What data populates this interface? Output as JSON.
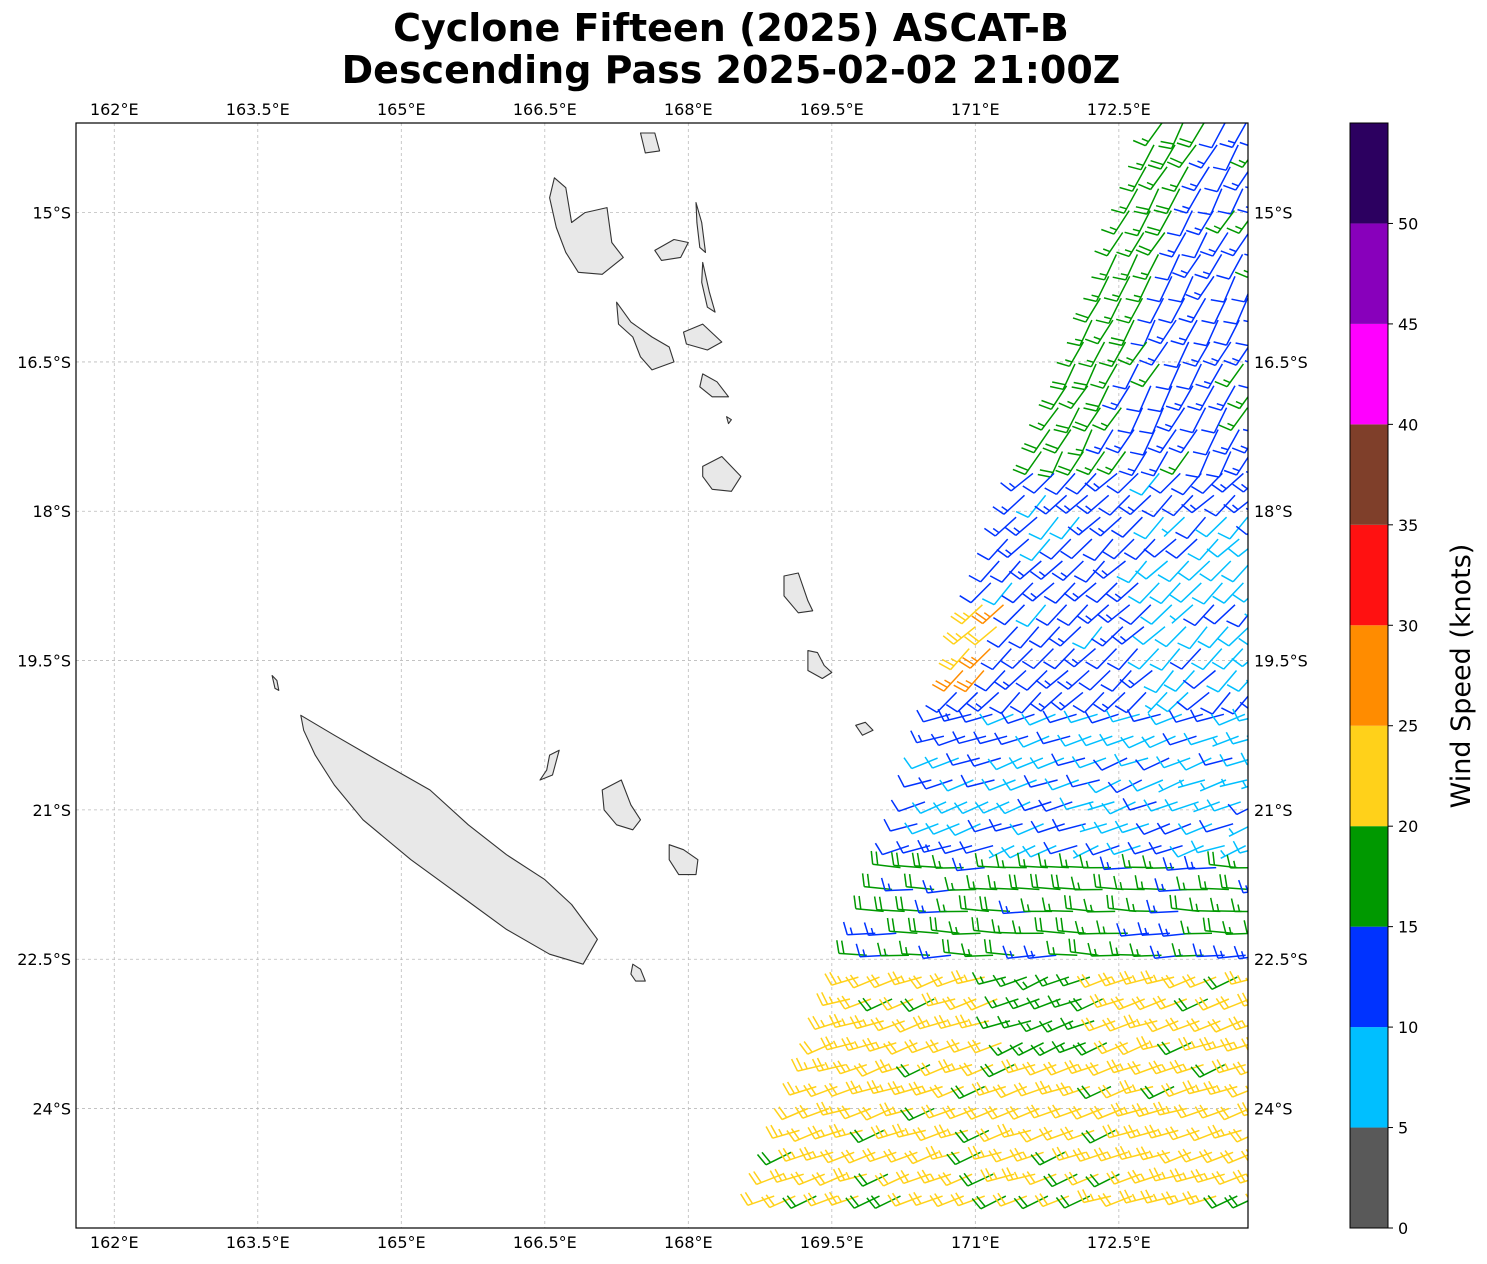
{
  "title_line1": "Cyclone Fifteen (2025) ASCAT-B",
  "title_line2": "Descending Pass 2025-02-02 21:00Z",
  "map": {
    "extent": {
      "lon_min": 161.6,
      "lon_max": 173.85,
      "lat_min": -25.2,
      "lat_max": -14.1
    },
    "lon_ticks": [
      {
        "value": 162,
        "label": "162°E"
      },
      {
        "value": 163.5,
        "label": "163.5°E"
      },
      {
        "value": 165,
        "label": "165°E"
      },
      {
        "value": 166.5,
        "label": "166.5°E"
      },
      {
        "value": 168,
        "label": "168°E"
      },
      {
        "value": 169.5,
        "label": "169.5°E"
      },
      {
        "value": 171,
        "label": "171°E"
      },
      {
        "value": 172.5,
        "label": "172.5°E"
      }
    ],
    "lat_ticks": [
      {
        "value": -15,
        "label": "15°S"
      },
      {
        "value": -16.5,
        "label": "16.5°S"
      },
      {
        "value": -18,
        "label": "18°S"
      },
      {
        "value": -19.5,
        "label": "19.5°S"
      },
      {
        "value": -21,
        "label": "21°S"
      },
      {
        "value": -22.5,
        "label": "22.5°S"
      },
      {
        "value": -24,
        "label": "24°S"
      }
    ],
    "grid": true,
    "land_color": "#e8e8e8",
    "coast_color": "#333333",
    "islands": [
      {
        "name": "Grande Terre",
        "pts": [
          [
            163.95,
            -20.05
          ],
          [
            164.3,
            -20.25
          ],
          [
            164.75,
            -20.5
          ],
          [
            165.3,
            -20.8
          ],
          [
            165.7,
            -21.15
          ],
          [
            166.1,
            -21.45
          ],
          [
            166.5,
            -21.7
          ],
          [
            166.78,
            -21.95
          ],
          [
            167.05,
            -22.3
          ],
          [
            166.9,
            -22.55
          ],
          [
            166.55,
            -22.45
          ],
          [
            166.1,
            -22.2
          ],
          [
            165.6,
            -21.85
          ],
          [
            165.1,
            -21.5
          ],
          [
            164.6,
            -21.1
          ],
          [
            164.3,
            -20.75
          ],
          [
            164.1,
            -20.45
          ],
          [
            163.98,
            -20.2
          ]
        ]
      },
      {
        "name": "Espiritu Santo",
        "pts": [
          [
            166.6,
            -14.65
          ],
          [
            166.72,
            -14.75
          ],
          [
            166.78,
            -15.1
          ],
          [
            166.92,
            -15.0
          ],
          [
            167.15,
            -14.95
          ],
          [
            167.2,
            -15.3
          ],
          [
            167.32,
            -15.45
          ],
          [
            167.1,
            -15.62
          ],
          [
            166.85,
            -15.6
          ],
          [
            166.72,
            -15.4
          ],
          [
            166.62,
            -15.15
          ],
          [
            166.55,
            -14.85
          ]
        ]
      },
      {
        "name": "Malekula",
        "pts": [
          [
            167.25,
            -15.9
          ],
          [
            167.4,
            -16.1
          ],
          [
            167.62,
            -16.25
          ],
          [
            167.8,
            -16.35
          ],
          [
            167.85,
            -16.5
          ],
          [
            167.62,
            -16.58
          ],
          [
            167.5,
            -16.45
          ],
          [
            167.42,
            -16.25
          ],
          [
            167.27,
            -16.12
          ]
        ]
      },
      {
        "name": "Maewo",
        "pts": [
          [
            168.08,
            -14.9
          ],
          [
            168.14,
            -15.1
          ],
          [
            168.18,
            -15.4
          ],
          [
            168.12,
            -15.35
          ],
          [
            168.09,
            -15.1
          ]
        ]
      },
      {
        "name": "Pentecost",
        "pts": [
          [
            168.15,
            -15.5
          ],
          [
            168.22,
            -15.8
          ],
          [
            168.28,
            -16.0
          ],
          [
            168.2,
            -15.95
          ],
          [
            168.14,
            -15.7
          ]
        ]
      },
      {
        "name": "Ambae",
        "pts": [
          [
            167.65,
            -15.38
          ],
          [
            167.85,
            -15.27
          ],
          [
            168.0,
            -15.3
          ],
          [
            167.92,
            -15.45
          ],
          [
            167.72,
            -15.48
          ]
        ]
      },
      {
        "name": "Ambrym",
        "pts": [
          [
            167.95,
            -16.2
          ],
          [
            168.15,
            -16.12
          ],
          [
            168.35,
            -16.3
          ],
          [
            168.2,
            -16.38
          ],
          [
            167.98,
            -16.32
          ]
        ]
      },
      {
        "name": "Epi",
        "pts": [
          [
            168.15,
            -16.62
          ],
          [
            168.3,
            -16.7
          ],
          [
            168.42,
            -16.85
          ],
          [
            168.25,
            -16.85
          ],
          [
            168.12,
            -16.75
          ]
        ]
      },
      {
        "name": "Efate",
        "pts": [
          [
            168.15,
            -17.55
          ],
          [
            168.35,
            -17.45
          ],
          [
            168.55,
            -17.65
          ],
          [
            168.45,
            -17.8
          ],
          [
            168.25,
            -17.78
          ],
          [
            168.15,
            -17.65
          ]
        ]
      },
      {
        "name": "Erromango",
        "pts": [
          [
            169.0,
            -18.65
          ],
          [
            169.15,
            -18.62
          ],
          [
            169.25,
            -18.9
          ],
          [
            169.3,
            -19.0
          ],
          [
            169.15,
            -19.02
          ],
          [
            169.0,
            -18.85
          ]
        ]
      },
      {
        "name": "Tanna",
        "pts": [
          [
            169.25,
            -19.4
          ],
          [
            169.35,
            -19.42
          ],
          [
            169.42,
            -19.55
          ],
          [
            169.5,
            -19.62
          ],
          [
            169.4,
            -19.68
          ],
          [
            169.25,
            -19.6
          ]
        ]
      },
      {
        "name": "Aneityum",
        "pts": [
          [
            169.75,
            -20.15
          ],
          [
            169.85,
            -20.12
          ],
          [
            169.93,
            -20.2
          ],
          [
            169.82,
            -20.25
          ]
        ]
      },
      {
        "name": "Lifou",
        "pts": [
          [
            167.1,
            -20.8
          ],
          [
            167.3,
            -20.7
          ],
          [
            167.4,
            -20.95
          ],
          [
            167.5,
            -21.1
          ],
          [
            167.42,
            -21.2
          ],
          [
            167.25,
            -21.15
          ],
          [
            167.12,
            -21.0
          ]
        ]
      },
      {
        "name": "Mare",
        "pts": [
          [
            167.8,
            -21.35
          ],
          [
            167.95,
            -21.4
          ],
          [
            168.1,
            -21.5
          ],
          [
            168.08,
            -21.65
          ],
          [
            167.9,
            -21.65
          ],
          [
            167.8,
            -21.5
          ]
        ]
      },
      {
        "name": "Ouvea",
        "pts": [
          [
            166.55,
            -20.45
          ],
          [
            166.65,
            -20.4
          ],
          [
            166.58,
            -20.65
          ],
          [
            166.45,
            -20.7
          ],
          [
            166.52,
            -20.6
          ]
        ]
      },
      {
        "name": "Isle of Pines",
        "pts": [
          [
            167.42,
            -22.55
          ],
          [
            167.5,
            -22.6
          ],
          [
            167.55,
            -22.72
          ],
          [
            167.45,
            -22.72
          ],
          [
            167.4,
            -22.65
          ]
        ]
      },
      {
        "name": "Torres",
        "pts": [
          [
            167.5,
            -14.2
          ],
          [
            167.65,
            -14.2
          ],
          [
            167.7,
            -14.38
          ],
          [
            167.55,
            -14.4
          ]
        ]
      },
      {
        "name": "Belep",
        "pts": [
          [
            163.65,
            -19.65
          ],
          [
            163.7,
            -19.7
          ],
          [
            163.72,
            -19.8
          ],
          [
            163.68,
            -19.78
          ]
        ]
      },
      {
        "name": "Shepherd",
        "pts": [
          [
            168.4,
            -17.05
          ],
          [
            168.45,
            -17.08
          ],
          [
            168.42,
            -17.12
          ]
        ]
      }
    ]
  },
  "chart_data": {
    "type": "wind_barbs",
    "units": "knots",
    "colorbar": {
      "label": "Wind Speed (knots)",
      "tick_labels": [
        "0",
        "5",
        "10",
        "15",
        "20",
        "25",
        "30",
        "35",
        "40",
        "45",
        "50"
      ],
      "bins": [
        {
          "min": 0,
          "max": 5,
          "color": "#595959"
        },
        {
          "min": 5,
          "max": 10,
          "color": "#00bfff"
        },
        {
          "min": 10,
          "max": 15,
          "color": "#0033ff"
        },
        {
          "min": 15,
          "max": 20,
          "color": "#009900"
        },
        {
          "min": 20,
          "max": 25,
          "color": "#ffd11a"
        },
        {
          "min": 25,
          "max": 30,
          "color": "#ff8c00"
        },
        {
          "min": 30,
          "max": 35,
          "color": "#ff1111"
        },
        {
          "min": 35,
          "max": 40,
          "color": "#7f3f2a"
        },
        {
          "min": 40,
          "max": 45,
          "color": "#ff00ff"
        },
        {
          "min": 45,
          "max": 50,
          "color": "#8800bb"
        },
        {
          "min": 50,
          "max": 55,
          "color": "#2c0060"
        }
      ]
    },
    "swath": {
      "rows": [
        [
          -14.1,
          172.95
        ],
        [
          -14.5,
          172.8
        ],
        [
          -15.0,
          172.6
        ],
        [
          -15.5,
          172.45
        ],
        [
          -16.0,
          172.25
        ],
        [
          -16.5,
          172.05
        ],
        [
          -17.0,
          171.85
        ],
        [
          -17.5,
          171.65
        ],
        [
          -18.0,
          171.45
        ],
        [
          -18.5,
          171.25
        ],
        [
          -19.0,
          171.05
        ],
        [
          -19.5,
          170.9
        ],
        [
          -20.0,
          170.75
        ],
        [
          -20.5,
          170.6
        ],
        [
          -21.0,
          170.45
        ],
        [
          -21.5,
          170.25
        ],
        [
          -22.0,
          170.05
        ],
        [
          -22.5,
          169.85
        ],
        [
          -23.0,
          169.65
        ],
        [
          -23.5,
          169.45
        ],
        [
          -24.0,
          169.25
        ],
        [
          -24.5,
          169.05
        ],
        [
          -25.0,
          168.85
        ]
      ],
      "lon_right": 173.85,
      "cell_deg": 0.22
    },
    "regimes": [
      {
        "lat_max": -14.1,
        "lat_min": -17.5,
        "dir_deg": 210,
        "speed_knots": 13
      },
      {
        "lat_max": -17.5,
        "lat_min": -20.0,
        "dir_deg": 225,
        "speed_knots": 12
      },
      {
        "lat_max": -20.0,
        "lat_min": -21.5,
        "dir_deg": 250,
        "speed_knots": 10
      },
      {
        "lat_max": -21.5,
        "lat_min": -22.6,
        "dir_deg": 270,
        "speed_knots": 16
      },
      {
        "lat_max": -22.6,
        "lat_min": -25.2,
        "dir_deg": 250,
        "speed_knots": 22
      }
    ]
  }
}
